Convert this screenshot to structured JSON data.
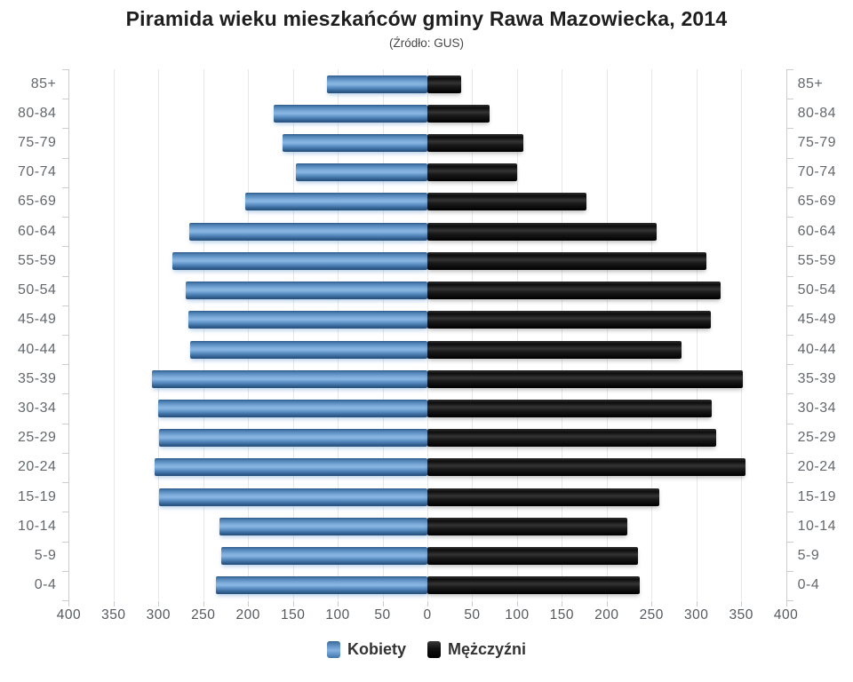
{
  "title": "Piramida wieku mieszkańców gminy Rawa Mazowiecka, 2014",
  "subtitle": "(Źródło: GUS)",
  "legend": {
    "women_label": "Kobiety",
    "men_label": "Mężczyźni"
  },
  "chart_data": {
    "type": "bar",
    "subtype": "population-pyramid",
    "orientation": "horizontal",
    "grid": true,
    "legend_position": "bottom",
    "categories_top_to_bottom": [
      "85+",
      "80-84",
      "75-79",
      "70-74",
      "65-69",
      "60-64",
      "55-59",
      "50-54",
      "45-49",
      "40-44",
      "35-39",
      "30-34",
      "25-29",
      "20-24",
      "15-19",
      "10-14",
      "5-9",
      "0-4"
    ],
    "series": [
      {
        "name": "Kobiety",
        "side": "left",
        "color": "#4d84bc",
        "values": [
          112,
          171,
          162,
          147,
          203,
          266,
          284,
          270,
          267,
          265,
          307,
          300,
          299,
          304,
          299,
          232,
          230,
          236
        ]
      },
      {
        "name": "Mężczyźni",
        "side": "right",
        "color": "#111111",
        "values": [
          38,
          69,
          107,
          100,
          177,
          256,
          311,
          327,
          316,
          283,
          352,
          317,
          322,
          355,
          259,
          223,
          235,
          237
        ]
      }
    ],
    "x_max": 400,
    "x_tick_step": 50,
    "x_tick_labels": [
      "400",
      "350",
      "300",
      "250",
      "200",
      "150",
      "100",
      "50",
      "0",
      "50",
      "100",
      "150",
      "200",
      "250",
      "300",
      "350",
      "400"
    ],
    "xlim": [
      -400,
      400
    ]
  }
}
